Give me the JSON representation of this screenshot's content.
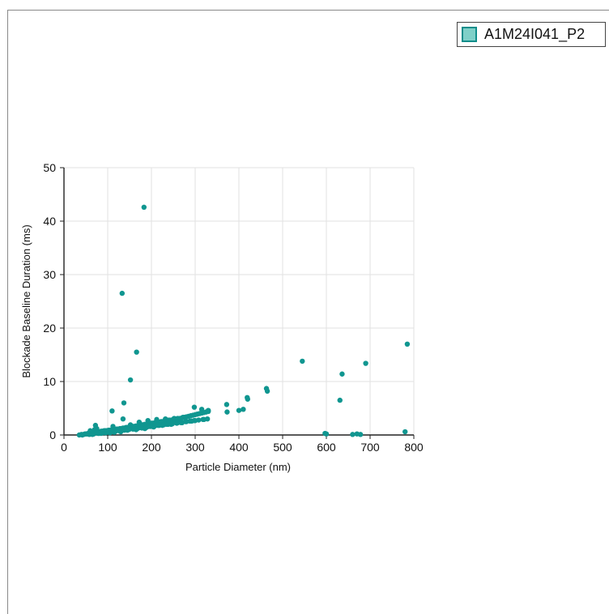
{
  "legend": {
    "label": "A1M24I041_P2",
    "swatch_fill": "#7fd0c8",
    "swatch_border": "#0e8d8a"
  },
  "chart_data": {
    "type": "scatter",
    "xlabel": "Particle Diameter (nm)",
    "ylabel": "Blockade Baseline Duration (ms)",
    "xlim": [
      0,
      800
    ],
    "ylim": [
      0,
      50
    ],
    "xticks": [
      0,
      100,
      200,
      300,
      400,
      500,
      600,
      700,
      800
    ],
    "yticks": [
      0,
      10,
      20,
      30,
      40,
      50
    ],
    "grid": true,
    "legend_position": "top-right",
    "series": [
      {
        "name": "A1M24I041_P2",
        "color": "#109690",
        "x": [
          35,
          40,
          45,
          48,
          50,
          52,
          55,
          58,
          60,
          62,
          65,
          68,
          70,
          72,
          75,
          78,
          80,
          82,
          85,
          88,
          90,
          92,
          95,
          98,
          100,
          102,
          105,
          108,
          110,
          112,
          115,
          118,
          120,
          122,
          125,
          128,
          130,
          132,
          135,
          138,
          140,
          142,
          145,
          148,
          150,
          152,
          155,
          158,
          160,
          162,
          165,
          168,
          170,
          172,
          175,
          178,
          180,
          182,
          185,
          188,
          190,
          192,
          195,
          198,
          200,
          202,
          205,
          208,
          210,
          212,
          215,
          218,
          220,
          222,
          225,
          228,
          230,
          232,
          235,
          240,
          245,
          250,
          255,
          260,
          265,
          270,
          275,
          280,
          285,
          290,
          295,
          300,
          305,
          310,
          315,
          320,
          325,
          330,
          60,
          70,
          75,
          80,
          90,
          95,
          100,
          110,
          115,
          120,
          125,
          130,
          140,
          150,
          160,
          170,
          180,
          190,
          200,
          210,
          220,
          230,
          240,
          250,
          65,
          85,
          105,
          128,
          145,
          165,
          185,
          205,
          225,
          245,
          270,
          292,
          55,
          75,
          95,
          115,
          135,
          155,
          175,
          195,
          215,
          235,
          260,
          280,
          300,
          320,
          42,
          58,
          68,
          78,
          88,
          98,
          108,
          118,
          128,
          138,
          148,
          158,
          168,
          178,
          188,
          198,
          208,
          218,
          228,
          238,
          248,
          258,
          268,
          278,
          288,
          298,
          308,
          318,
          328,
          72,
          112,
          152,
          172,
          192,
          212,
          232,
          252,
          272,
          133,
          183,
          137,
          166,
          152,
          110,
          135,
          298,
          315,
          330,
          372,
          373,
          400,
          410,
          419,
          420,
          463,
          465,
          545,
          631,
          636,
          690,
          785,
          597,
          600,
          660,
          670,
          678,
          780
        ],
        "y": [
          0.0,
          0.1,
          0.1,
          0.2,
          0.2,
          0.2,
          0.3,
          0.3,
          0.3,
          0.4,
          0.4,
          0.4,
          0.5,
          0.5,
          0.5,
          0.6,
          0.6,
          0.6,
          0.7,
          0.7,
          0.7,
          0.8,
          0.8,
          0.8,
          0.8,
          0.9,
          0.9,
          0.9,
          1.0,
          1.0,
          1.0,
          1.0,
          1.1,
          1.1,
          1.1,
          1.2,
          1.2,
          1.2,
          1.3,
          1.3,
          1.3,
          1.4,
          1.4,
          1.4,
          1.5,
          1.5,
          1.5,
          1.6,
          1.6,
          1.6,
          1.7,
          1.7,
          1.7,
          1.8,
          1.8,
          1.9,
          1.9,
          1.9,
          2.0,
          2.0,
          2.0,
          2.1,
          2.1,
          2.1,
          2.2,
          2.2,
          2.2,
          2.3,
          2.3,
          2.3,
          2.4,
          2.4,
          2.4,
          2.5,
          2.5,
          2.5,
          2.6,
          2.6,
          2.7,
          2.8,
          2.8,
          2.9,
          3.0,
          3.1,
          3.1,
          3.2,
          3.3,
          3.4,
          3.5,
          3.6,
          3.7,
          3.8,
          3.9,
          4.0,
          4.1,
          4.2,
          4.3,
          4.4,
          0.8,
          1.0,
          1.2,
          0.3,
          0.5,
          0.4,
          0.6,
          0.7,
          0.5,
          0.8,
          0.9,
          0.6,
          1.0,
          1.1,
          1.2,
          1.3,
          1.4,
          1.5,
          1.7,
          1.9,
          2.0,
          2.2,
          2.4,
          2.6,
          0.1,
          0.3,
          0.4,
          0.7,
          0.9,
          1.0,
          1.2,
          1.5,
          1.8,
          2.0,
          2.3,
          2.6,
          0.2,
          0.4,
          0.6,
          0.8,
          1.0,
          1.2,
          1.4,
          1.6,
          1.8,
          2.0,
          2.3,
          2.5,
          2.7,
          2.9,
          0.0,
          0.1,
          0.2,
          0.3,
          0.4,
          0.5,
          0.6,
          0.7,
          0.8,
          0.9,
          1.0,
          1.1,
          1.2,
          1.3,
          1.4,
          1.6,
          1.7,
          1.8,
          1.9,
          2.0,
          2.1,
          2.2,
          2.3,
          2.5,
          2.6,
          2.7,
          2.8,
          2.9,
          3.0,
          1.8,
          1.6,
          1.9,
          2.4,
          2.7,
          2.9,
          3.0,
          3.1,
          3.3,
          26.5,
          42.6,
          6.0,
          15.5,
          10.3,
          4.5,
          3.0,
          5.2,
          4.8,
          4.6,
          5.7,
          4.3,
          4.6,
          4.8,
          7.0,
          6.7,
          8.7,
          8.2,
          13.8,
          6.5,
          11.4,
          13.4,
          17.0,
          0.3,
          0.2,
          0.1,
          0.2,
          0.1,
          0.6
        ]
      }
    ]
  }
}
